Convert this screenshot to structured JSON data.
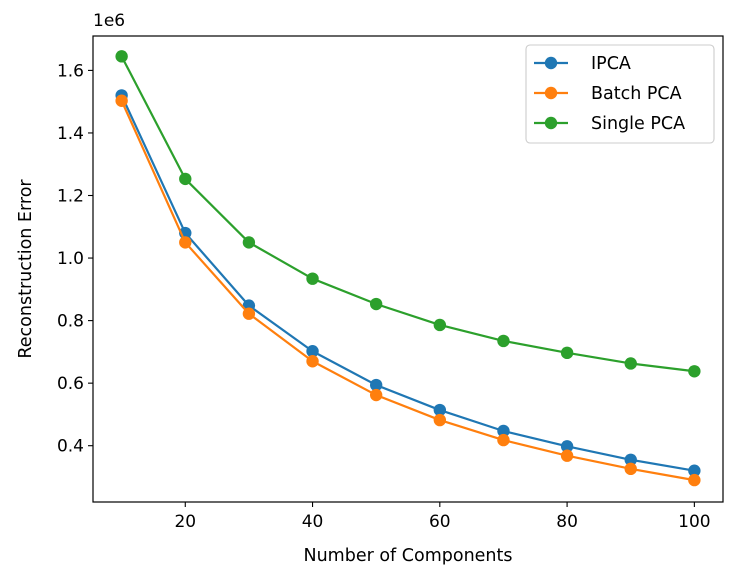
{
  "chart_data": {
    "type": "line",
    "title": "",
    "xlabel": "Number of Components",
    "ylabel": "Reconstruction Error",
    "y_offset_label": "1e6",
    "xlim": [
      5.5,
      104.5
    ],
    "ylim": [
      220000,
      1710000
    ],
    "x_ticks": [
      20,
      40,
      60,
      80,
      100
    ],
    "x_tick_labels": [
      "20",
      "40",
      "60",
      "80",
      "100"
    ],
    "y_ticks": [
      400000,
      600000,
      800000,
      1000000,
      1200000,
      1400000,
      1600000
    ],
    "y_tick_labels": [
      "0.4",
      "0.6",
      "0.8",
      "1.0",
      "1.2",
      "1.4",
      "1.6"
    ],
    "x": [
      10,
      20,
      30,
      40,
      50,
      60,
      70,
      80,
      90,
      100
    ],
    "grid": false,
    "legend_position": "top-right",
    "series": [
      {
        "name": "IPCA",
        "color": "#1f77b4",
        "values": [
          1520000,
          1080000,
          848000,
          702000,
          594000,
          514000,
          447000,
          398000,
          355000,
          320000
        ]
      },
      {
        "name": "Batch PCA",
        "color": "#ff7f0e",
        "values": [
          1503000,
          1050000,
          822000,
          670000,
          562000,
          482000,
          418000,
          368000,
          326000,
          290000
        ]
      },
      {
        "name": "Single PCA",
        "color": "#2ca02c",
        "values": [
          1645000,
          1253000,
          1050000,
          934000,
          853000,
          786000,
          735000,
          697000,
          663000,
          638000
        ]
      }
    ]
  }
}
